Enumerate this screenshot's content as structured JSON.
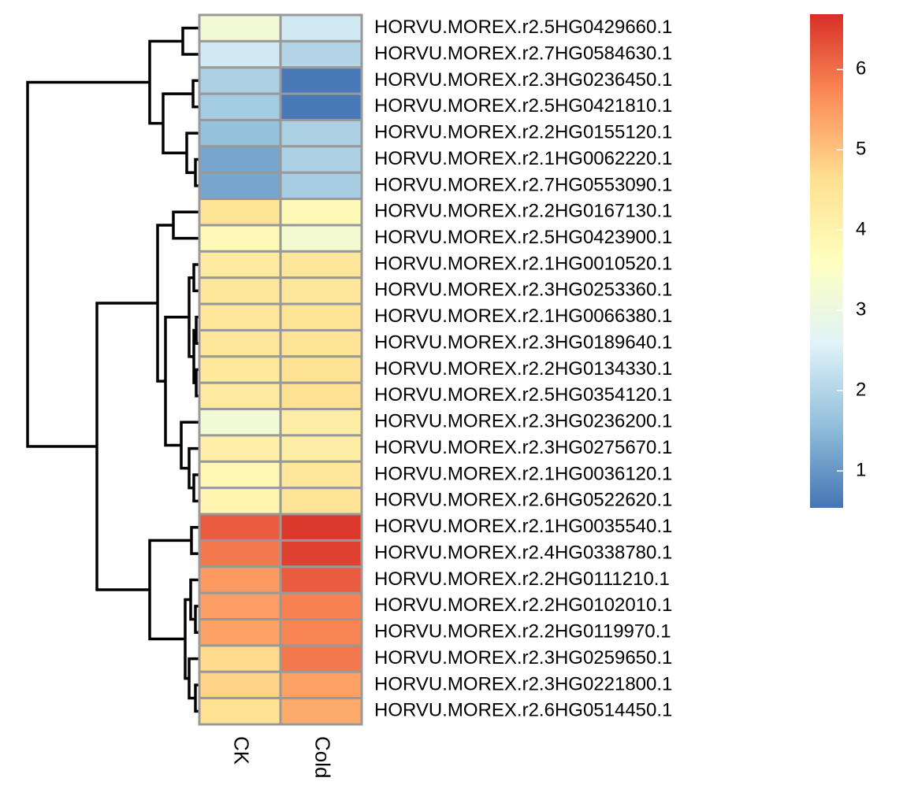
{
  "chart_data": {
    "type": "heatmap",
    "categories": [
      "HORVU.MOREX.r2.5HG0429660.1",
      "HORVU.MOREX.r2.7HG0584630.1",
      "HORVU.MOREX.r2.3HG0236450.1",
      "HORVU.MOREX.r2.5HG0421810.1",
      "HORVU.MOREX.r2.2HG0155120.1",
      "HORVU.MOREX.r2.1HG0062220.1",
      "HORVU.MOREX.r2.7HG0553090.1",
      "HORVU.MOREX.r2.2HG0167130.1",
      "HORVU.MOREX.r2.5HG0423900.1",
      "HORVU.MOREX.r2.1HG0010520.1",
      "HORVU.MOREX.r2.3HG0253360.1",
      "HORVU.MOREX.r2.1HG0066380.1",
      "HORVU.MOREX.r2.3HG0189640.1",
      "HORVU.MOREX.r2.2HG0134330.1",
      "HORVU.MOREX.r2.5HG0354120.1",
      "HORVU.MOREX.r2.3HG0236200.1",
      "HORVU.MOREX.r2.3HG0275670.1",
      "HORVU.MOREX.r2.1HG0036120.1",
      "HORVU.MOREX.r2.6HG0522620.1",
      "HORVU.MOREX.r2.1HG0035540.1",
      "HORVU.MOREX.r2.4HG0338780.1",
      "HORVU.MOREX.r2.2HG0111210.1",
      "HORVU.MOREX.r2.2HG0102010.1",
      "HORVU.MOREX.r2.2HG0119970.1",
      "HORVU.MOREX.r2.3HG0259650.1",
      "HORVU.MOREX.r2.3HG0221800.1",
      "HORVU.MOREX.r2.6HG0514450.1"
    ],
    "series": [
      {
        "name": "CK",
        "values": [
          3.2,
          2.4,
          1.9,
          1.8,
          1.6,
          1.2,
          1.2,
          4.5,
          3.8,
          4.3,
          4.4,
          4.4,
          4.4,
          4.35,
          4.3,
          3.2,
          4.1,
          3.85,
          3.95,
          6.2,
          5.9,
          5.5,
          5.45,
          5.4,
          4.7,
          4.8,
          4.6
        ]
      },
      {
        "name": "Cold",
        "values": [
          2.4,
          2.0,
          0.6,
          0.6,
          1.9,
          1.9,
          1.85,
          3.8,
          3.3,
          4.4,
          4.4,
          4.5,
          4.5,
          4.55,
          4.6,
          4.2,
          4.2,
          4.4,
          4.5,
          6.6,
          6.5,
          6.2,
          5.8,
          5.75,
          5.9,
          5.4,
          5.3
        ]
      }
    ],
    "colorscale": [
      "#4575B4",
      "#91BFDB",
      "#E0F3F8",
      "#FFFFBF",
      "#FEE090",
      "#FC8D59",
      "#D73027"
    ],
    "clim": [
      0.54,
      6.69
    ],
    "cticks": [
      1,
      2,
      3,
      4,
      5,
      6
    ]
  }
}
